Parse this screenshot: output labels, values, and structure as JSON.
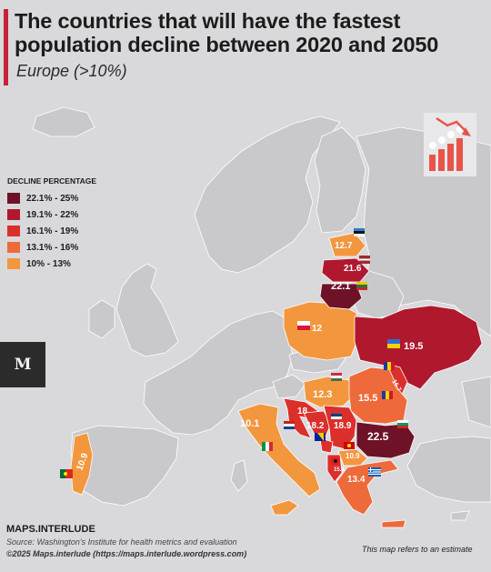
{
  "header": {
    "title_line1": "The countries that will have the fastest",
    "title_line2": "population decline between 2020 and 2050",
    "subtitle": "Europe (>10%)"
  },
  "legend": {
    "title": "DECLINE PERCENTAGE",
    "items": [
      {
        "label": "22.1% - 25%",
        "color": "#6e1228"
      },
      {
        "label": "19.1% - 22%",
        "color": "#b0182d"
      },
      {
        "label": "16.1% - 19%",
        "color": "#db2f2c"
      },
      {
        "label": "13.1% - 16%",
        "color": "#ee6a3a"
      },
      {
        "label": "10% - 13%",
        "color": "#f3973f"
      }
    ]
  },
  "map": {
    "base_color": "#c9c9cc",
    "countries": [
      {
        "name": "Estonia",
        "value": "12.7",
        "flag": "estonia-flag"
      },
      {
        "name": "Latvia",
        "value": "21.6",
        "flag": "latvia-flag"
      },
      {
        "name": "Lithuania",
        "value": "22.1",
        "flag": "lithuania-flag"
      },
      {
        "name": "Poland",
        "value": "12",
        "flag": "poland-flag"
      },
      {
        "name": "Ukraine",
        "value": "19.5",
        "flag": "ukraine-flag"
      },
      {
        "name": "Moldova",
        "value": "16.7",
        "flag": "moldova-flag"
      },
      {
        "name": "Hungary",
        "value": "12.3",
        "flag": "hungary-flag"
      },
      {
        "name": "Romania",
        "value": "15.5",
        "flag": "romania-flag"
      },
      {
        "name": "Croatia",
        "value": "18",
        "flag": "croatia-flag"
      },
      {
        "name": "Bosnia and Herzegovina",
        "value": "18.2",
        "flag": "bosnia-flag"
      },
      {
        "name": "Serbia",
        "value": "18.9",
        "flag": "serbia-flag"
      },
      {
        "name": "Bulgaria",
        "value": "22.5",
        "flag": "bulgaria-flag"
      },
      {
        "name": "Albania",
        "value": "15.8",
        "flag": "albania-flag"
      },
      {
        "name": "North Macedonia",
        "value": "10.9",
        "flag": "macedonia-flag"
      },
      {
        "name": "Greece",
        "value": "13.4",
        "flag": "greece-flag"
      },
      {
        "name": "Italy",
        "value": "10.1",
        "flag": "italy-flag"
      },
      {
        "name": "Portugal",
        "value": "10.9",
        "flag": "portugal-flag"
      }
    ]
  },
  "logo": {
    "glyph": "M"
  },
  "footer": {
    "brand": "MAPS.INTERLUDE",
    "source": "Source: Washington's Institute for health metrics and evaluation",
    "copyright": "©2025 Maps.interlude (https://maps.interlude.wordpress.com)",
    "note": "This map refers to an estimate"
  }
}
